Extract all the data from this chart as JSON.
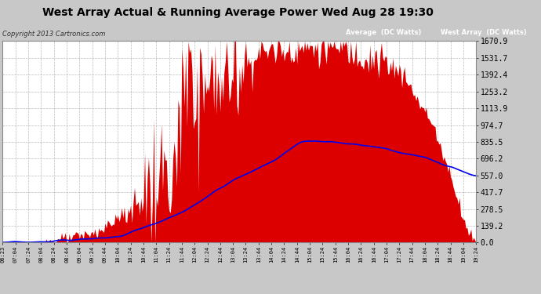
{
  "title": "West Array Actual & Running Average Power Wed Aug 28 19:30",
  "copyright": "Copyright 2013 Cartronics.com",
  "legend_avg": "Average  (DC Watts)",
  "legend_west": "West Array  (DC Watts)",
  "ymin": 0.0,
  "ymax": 1670.9,
  "yticks": [
    0.0,
    139.2,
    278.5,
    417.7,
    557.0,
    696.2,
    835.5,
    974.7,
    1113.9,
    1253.2,
    1392.4,
    1531.7,
    1670.9
  ],
  "xtick_labels": [
    "06:23",
    "07:04",
    "07:24",
    "08:04",
    "08:24",
    "08:44",
    "09:04",
    "09:24",
    "09:44",
    "10:04",
    "10:24",
    "10:44",
    "11:04",
    "11:24",
    "11:44",
    "12:04",
    "12:24",
    "12:44",
    "13:04",
    "13:24",
    "13:44",
    "14:04",
    "14:24",
    "14:44",
    "15:04",
    "15:24",
    "15:44",
    "16:04",
    "16:24",
    "16:44",
    "17:04",
    "17:24",
    "17:44",
    "18:04",
    "18:24",
    "18:44",
    "19:04",
    "19:24"
  ],
  "plot_bg": "#ffffff",
  "fill_color": "#dd0000",
  "line_color": "#0000ee",
  "grid_color": "#aaaaaa",
  "title_color": "#000000",
  "fig_bg": "#c8c8c8",
  "legend_avg_bg": "#0000bb",
  "legend_west_bg": "#cc0000"
}
